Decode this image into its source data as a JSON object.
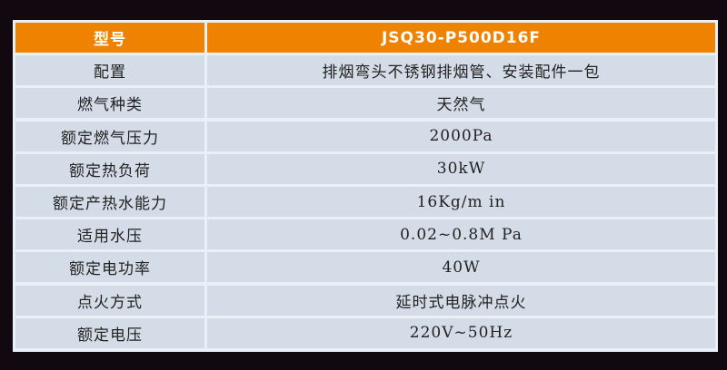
{
  "header": {
    "label": "型号",
    "value": "JSQ30-P500D16F"
  },
  "rows": [
    {
      "label": "配置",
      "value": "排烟弯头不锈钢排烟管、安装配件一包"
    },
    {
      "label": "燃气种类",
      "value": "天然气"
    },
    {
      "label": "额定燃气压力",
      "value": "2000Pa"
    },
    {
      "label": "额定热负荷",
      "value": "30kW"
    },
    {
      "label": "额定产热水能力",
      "value": "16Kg/m in"
    },
    {
      "label": "适用水压",
      "value": "0.02~0.8M Pa"
    },
    {
      "label": "额定电功率",
      "value": "40W"
    },
    {
      "label": "点火方式",
      "value": "延时式电脉冲点火"
    },
    {
      "label": "额定电压",
      "value": "220V~50Hz"
    }
  ],
  "colors": {
    "header": "#ef8200",
    "cell": "#d3dce7",
    "background": "#120810"
  }
}
